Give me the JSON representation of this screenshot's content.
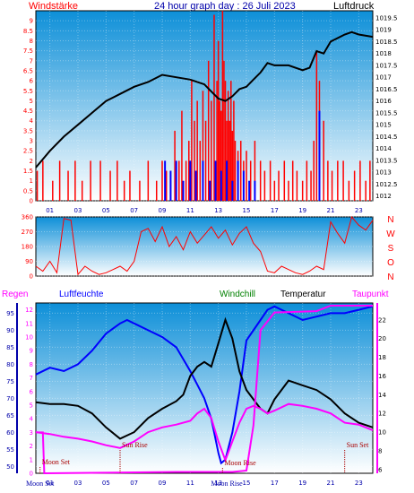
{
  "colors": {
    "wind": "#ff0000",
    "gust": "#0000ff",
    "pressure": "#000000",
    "humidity": "#0000ff",
    "windchill": "#008000",
    "temperature": "#000000",
    "dewpoint": "#ff00ff",
    "rain": "#ff00ff",
    "bg_top": "#0d8fd8",
    "bg_bottom": "#ffffff"
  },
  "chart_data": [
    {
      "type": "bar",
      "title": "24 hour graph day : 26 Juli 2023",
      "left_label": "Windstärke",
      "right_label": "Luftdruck",
      "x_ticks": [
        "01",
        "03",
        "05",
        "07",
        "09",
        "11",
        "13",
        "15",
        "17",
        "19",
        "21",
        "23"
      ],
      "x_range": [
        0,
        24
      ],
      "y_left_ticks": [
        "0",
        "0.5",
        "1",
        "1.5",
        "2",
        "2.5",
        "3",
        "3.5",
        "4",
        "4.5",
        "5",
        "5.5",
        "6",
        "6.5",
        "7",
        "7.5",
        "8",
        "8.5",
        "9"
      ],
      "ylim_left": [
        0,
        9.5
      ],
      "y_right_ticks": [
        "1012",
        "1012.5",
        "1013",
        "1013.5",
        "1014",
        "1014.5",
        "1015",
        "1015.5",
        "1016",
        "1016.5",
        "1017",
        "1017.5",
        "1018",
        "1018.5",
        "1019",
        "1019.5"
      ],
      "ylim_right": [
        1011.8,
        1019.8
      ],
      "series": [
        {
          "name": "Windstärke",
          "type": "bar",
          "x": [
            0.1,
            0.5,
            1.2,
            1.7,
            2.3,
            2.8,
            3.3,
            3.9,
            4.6,
            5.3,
            5.8,
            6.3,
            6.7,
            7.4,
            8.0,
            8.6,
            9.0,
            9.3,
            9.6,
            9.9,
            10.2,
            10.4,
            10.7,
            10.9,
            11.1,
            11.3,
            11.5,
            11.7,
            11.9,
            12.1,
            12.3,
            12.5,
            12.7,
            12.9,
            13.0,
            13.1,
            13.2,
            13.3,
            13.4,
            13.5,
            13.6,
            13.7,
            13.8,
            13.9,
            14.0,
            14.1,
            14.2,
            14.4,
            14.6,
            14.8,
            15.0,
            15.3,
            15.6,
            16.0,
            16.3,
            16.7,
            17.0,
            17.3,
            17.7,
            18.0,
            18.3,
            18.6,
            19.0,
            19.3,
            19.6,
            19.8,
            20.0,
            20.2,
            20.5,
            20.8,
            21.1,
            21.5,
            21.9,
            22.3,
            22.7,
            23.1,
            23.5,
            23.8
          ],
          "values": [
            1.5,
            2,
            1,
            2,
            1.5,
            2,
            1,
            2,
            2,
            1.5,
            2,
            1,
            1.5,
            1,
            2,
            1,
            2,
            1.5,
            1,
            3.5,
            2,
            4.5,
            2,
            3,
            6,
            4,
            5,
            3,
            5.5,
            4,
            7,
            5,
            9.3,
            6,
            8,
            5,
            4.5,
            9.5,
            7,
            6,
            4,
            5.5,
            4,
            6,
            3.5,
            5,
            3,
            2.5,
            3,
            2,
            2.5,
            2,
            3,
            2,
            1.5,
            2,
            1,
            1.5,
            2,
            1,
            2,
            1.5,
            1,
            2,
            1.5,
            3,
            7.5,
            6,
            4,
            2,
            1.5,
            2,
            2,
            1,
            1.5,
            2,
            1,
            2
          ]
        },
        {
          "name": "Böen",
          "type": "bar",
          "x": [
            9.2,
            9.6,
            10.0,
            10.5,
            11.0,
            11.4,
            11.9,
            12.4,
            12.8,
            13.2,
            13.6,
            14.0,
            14.4,
            14.8,
            15.2,
            15.6,
            20.2
          ],
          "values": [
            2,
            1.5,
            2,
            1,
            2,
            1.5,
            2,
            1,
            2,
            1.5,
            2,
            1,
            2,
            1.5,
            1,
            1,
            4.5
          ]
        },
        {
          "name": "Luftdruck",
          "type": "line",
          "axis": "right",
          "x": [
            0,
            1,
            2,
            3,
            4,
            5,
            6,
            7,
            8,
            9,
            10,
            11,
            12,
            12.5,
            13,
            13.5,
            14,
            14.5,
            15,
            15.5,
            16,
            16.5,
            17,
            18,
            19,
            19.5,
            20,
            20.5,
            21,
            22,
            22.5,
            23,
            24
          ],
          "values": [
            1013.2,
            1013.9,
            1014.5,
            1015.0,
            1015.5,
            1016.0,
            1016.3,
            1016.6,
            1016.8,
            1017.1,
            1017.0,
            1016.9,
            1016.7,
            1016.4,
            1016.1,
            1016.0,
            1016.2,
            1016.5,
            1016.6,
            1016.9,
            1017.2,
            1017.6,
            1017.5,
            1017.5,
            1017.3,
            1017.4,
            1018.1,
            1018.0,
            1018.5,
            1018.8,
            1018.9,
            1018.8,
            1018.7
          ]
        }
      ]
    },
    {
      "type": "line",
      "title": "",
      "right_labels": [
        "N",
        "W",
        "S",
        "O",
        "N"
      ],
      "y_ticks": [
        "0",
        "90",
        "180",
        "270",
        "360"
      ],
      "ylim": [
        0,
        360
      ],
      "x_range": [
        0,
        24
      ],
      "series": [
        {
          "name": "Windrichtung",
          "x": [
            0,
            0.5,
            1,
            1.5,
            2,
            2.5,
            3,
            3.5,
            4,
            4.5,
            5,
            5.5,
            6,
            6.5,
            7,
            7.5,
            8,
            8.5,
            9,
            9.5,
            10,
            10.5,
            11,
            11.5,
            12,
            12.5,
            13,
            13.5,
            14,
            14.5,
            15,
            15.5,
            16,
            16.5,
            17,
            17.5,
            18,
            18.5,
            19,
            19.5,
            20,
            20.5,
            21,
            21.5,
            22,
            22.5,
            23,
            23.5,
            24
          ],
          "values": [
            60,
            30,
            90,
            20,
            350,
            340,
            10,
            60,
            30,
            10,
            20,
            40,
            60,
            30,
            90,
            270,
            290,
            210,
            300,
            180,
            240,
            160,
            270,
            200,
            250,
            300,
            230,
            280,
            190,
            260,
            300,
            200,
            150,
            30,
            20,
            60,
            40,
            20,
            10,
            30,
            60,
            40,
            330,
            260,
            200,
            360,
            310,
            280,
            340
          ]
        }
      ]
    },
    {
      "type": "line",
      "title": "",
      "legend": [
        "Regen",
        "Luftfeuchte",
        "Windchill",
        "Temperatur",
        "Taupunkt"
      ],
      "y_left_ticks": [
        "50",
        "55",
        "60",
        "65",
        "70",
        "75",
        "80",
        "85",
        "90",
        "95"
      ],
      "ylim_left": [
        48,
        98
      ],
      "y_rain_ticks": [
        "0",
        "1",
        "2",
        "3",
        "4",
        "5",
        "6",
        "7",
        "8",
        "9",
        "10",
        "11",
        "12"
      ],
      "ylim_rain": [
        0,
        12.5
      ],
      "y_right_ticks": [
        "6",
        "8",
        "10",
        "12",
        "14",
        "16",
        "18",
        "20",
        "22"
      ],
      "ylim_right": [
        5.6,
        23.8
      ],
      "annotations": [
        "Moon Set",
        "Sun Rise",
        "Moon Rise",
        "Sun Set",
        "Moon Set",
        "Moon Rise"
      ],
      "series": [
        {
          "name": "Luftfeuchte",
          "axis": "left",
          "x": [
            0,
            1,
            2,
            3,
            4,
            5,
            6,
            6.5,
            7,
            8,
            9,
            10,
            11,
            11.5,
            12,
            12.5,
            13,
            13.2,
            13.5,
            14,
            14.5,
            15,
            16,
            16.5,
            17,
            18,
            19,
            20,
            21,
            22,
            23,
            24
          ],
          "values": [
            77,
            79,
            78,
            80,
            84,
            89,
            92,
            93,
            92,
            90,
            88,
            85,
            78,
            74,
            70,
            64,
            54,
            51,
            52,
            60,
            72,
            87,
            93,
            96,
            97,
            95,
            93,
            94,
            95,
            95,
            96,
            97
          ]
        },
        {
          "name": "Temperatur",
          "axis": "right",
          "x": [
            0,
            1,
            2,
            3,
            4,
            5,
            6,
            7,
            8,
            9,
            10,
            10.5,
            11,
            11.5,
            12,
            12.5,
            13,
            13.5,
            14,
            14.5,
            15,
            15.5,
            16,
            16.5,
            17,
            18,
            19,
            20,
            21,
            22,
            23,
            24
          ],
          "values": [
            13.2,
            13.0,
            13.0,
            12.8,
            12.0,
            10.5,
            9.3,
            10.0,
            11.5,
            12.5,
            13.3,
            14.0,
            16.0,
            17.0,
            17.5,
            17.0,
            19.5,
            22.0,
            20.0,
            16.5,
            14.5,
            13.5,
            12.5,
            12.0,
            13.5,
            15.5,
            15.0,
            14.5,
            13.5,
            12.0,
            11.0,
            10.5
          ]
        },
        {
          "name": "Taupunkt",
          "axis": "right",
          "x": [
            0,
            1,
            2,
            3,
            4,
            5,
            6,
            7,
            8,
            9,
            10,
            11,
            11.5,
            12,
            12.5,
            13,
            13.5,
            14,
            14.5,
            15,
            15.5,
            16,
            16.5,
            17,
            18,
            19,
            20,
            21,
            22,
            23,
            24
          ],
          "values": [
            10.0,
            9.8,
            9.5,
            9.3,
            9.0,
            8.6,
            8.3,
            9.0,
            10.0,
            10.5,
            10.8,
            11.2,
            12.0,
            12.5,
            11.5,
            9.0,
            7.0,
            9.0,
            11.0,
            12.5,
            12.8,
            12.5,
            12.0,
            12.3,
            13.0,
            12.8,
            12.5,
            12.0,
            11.0,
            10.8,
            10.2
          ]
        },
        {
          "name": "Regen",
          "axis": "rain",
          "x": [
            0,
            0.5,
            0.6,
            10,
            14,
            15,
            15.5,
            16,
            17,
            20,
            21,
            22,
            23,
            24
          ],
          "values": [
            3.0,
            3.0,
            0,
            0.1,
            0.1,
            0.2,
            3.5,
            10.5,
            11.8,
            11.9,
            12.3,
            12.3,
            12.3,
            12.3
          ]
        }
      ]
    }
  ],
  "annotation_positions_hours": [
    0.3,
    6.0,
    13.3,
    22.0,
    0.3,
    13.6
  ]
}
